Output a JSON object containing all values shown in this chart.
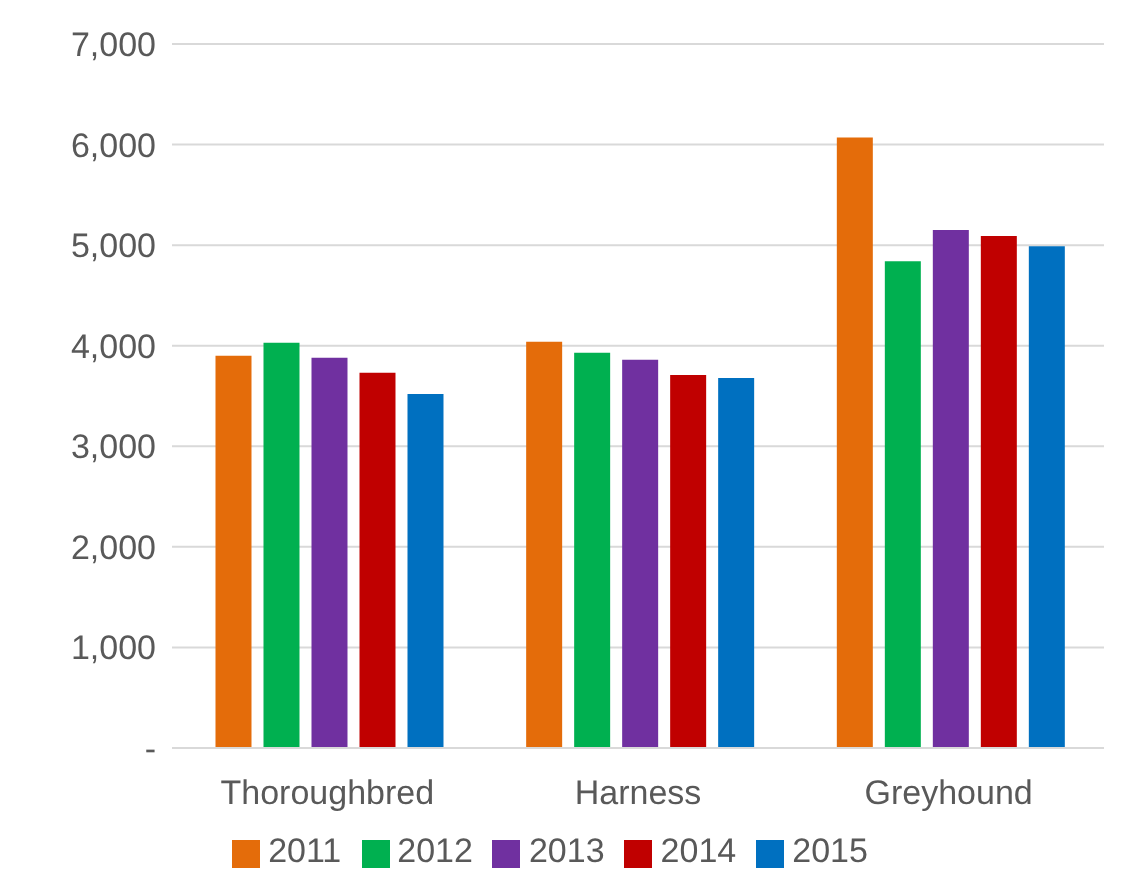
{
  "chart_data": {
    "type": "bar",
    "categories": [
      "Thoroughbred",
      "Harness",
      "Greyhound"
    ],
    "series": [
      {
        "name": "2011",
        "color": "#e46c0a",
        "values": [
          3900,
          4040,
          6070
        ]
      },
      {
        "name": "2012",
        "color": "#00b050",
        "values": [
          4030,
          3930,
          4840
        ]
      },
      {
        "name": "2013",
        "color": "#7030a0",
        "values": [
          3880,
          3860,
          5150
        ]
      },
      {
        "name": "2014",
        "color": "#c00000",
        "values": [
          3730,
          3710,
          5090
        ]
      },
      {
        "name": "2015",
        "color": "#0070c0",
        "values": [
          3520,
          3680,
          4990
        ]
      }
    ],
    "ylim": [
      0,
      7000
    ],
    "yticks": [
      {
        "value": 0,
        "label": "-"
      },
      {
        "value": 1000,
        "label": "1,000"
      },
      {
        "value": 2000,
        "label": "2,000"
      },
      {
        "value": 3000,
        "label": "3,000"
      },
      {
        "value": 4000,
        "label": "4,000"
      },
      {
        "value": 5000,
        "label": "5,000"
      },
      {
        "value": 6000,
        "label": "6,000"
      },
      {
        "value": 7000,
        "label": "7,000"
      }
    ],
    "grid": "y",
    "legend": "bottom"
  }
}
